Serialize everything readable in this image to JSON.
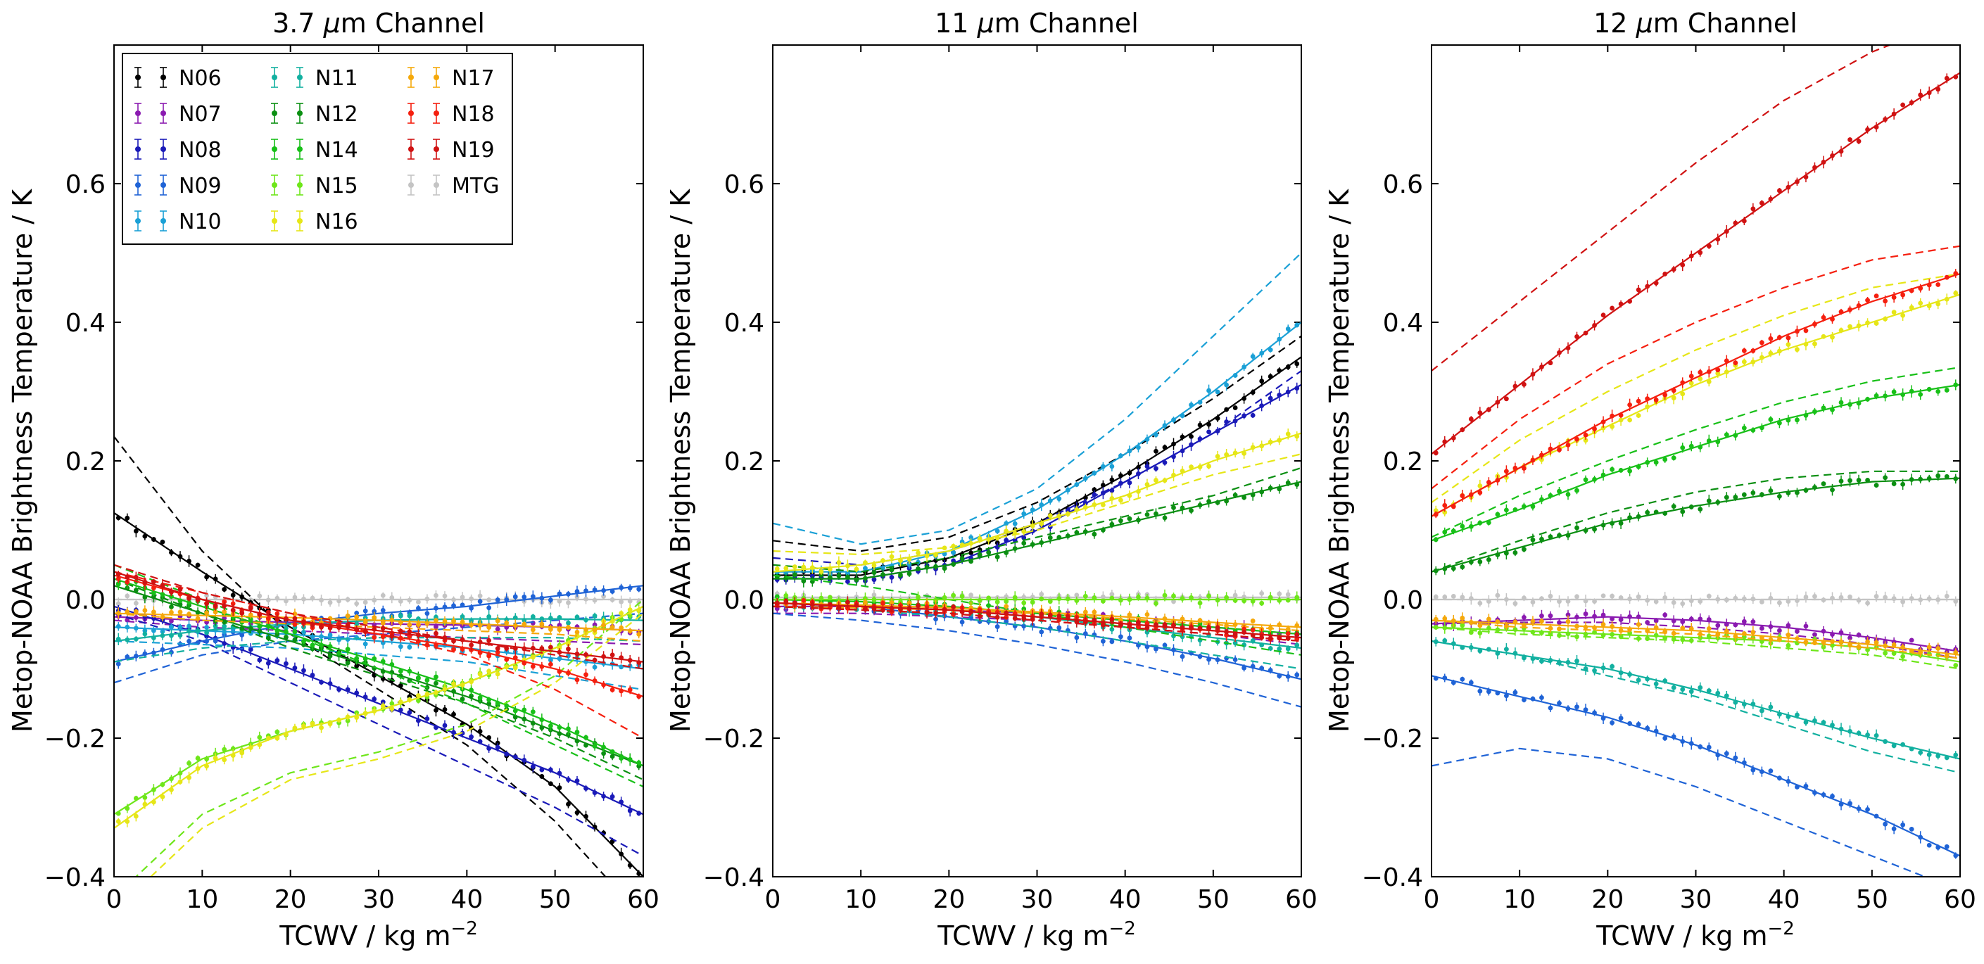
{
  "figure": {
    "xlabel_main": "TCWV / kg m",
    "xlabel_sup": "−2",
    "ylabel": "Metop-NOAA Brightness Temperature / K"
  },
  "legend": {
    "location": "top-left",
    "entries": [
      {
        "name": "N06",
        "color": "#000000"
      },
      {
        "name": "N07",
        "color": "#8a1ab0"
      },
      {
        "name": "N08",
        "color": "#1a1ab8"
      },
      {
        "name": "N09",
        "color": "#1f63d6"
      },
      {
        "name": "N10",
        "color": "#1aa0d6"
      },
      {
        "name": "N11",
        "color": "#12b0a0"
      },
      {
        "name": "N12",
        "color": "#0b8f12"
      },
      {
        "name": "N14",
        "color": "#18c018"
      },
      {
        "name": "N15",
        "color": "#6ee61a"
      },
      {
        "name": "N16",
        "color": "#e6e617"
      },
      {
        "name": "N17",
        "color": "#f5a80a"
      },
      {
        "name": "N18",
        "color": "#f51f0f"
      },
      {
        "name": "N19",
        "color": "#d01212"
      },
      {
        "name": "MTG",
        "color": "#c4c4c4"
      }
    ]
  },
  "chart_data": [
    {
      "type": "line",
      "title_prefix": "3.7 ",
      "title_mu": "μ",
      "title_suffix": "m Channel",
      "xlabel": "TCWV / kg m⁻²",
      "ylabel": "Metop-NOAA Brightness Temperature / K",
      "xlim": [
        0,
        60
      ],
      "ylim": [
        -0.4,
        0.8
      ],
      "xticks": [
        0,
        10,
        20,
        30,
        40,
        50,
        60
      ],
      "yticks": [
        -0.4,
        -0.2,
        0.0,
        0.2,
        0.4,
        0.6
      ],
      "series": [
        {
          "name": "MTG",
          "solid": [
            0,
            0,
            0,
            0,
            0,
            0,
            0
          ],
          "dashed": [
            0,
            0,
            0,
            0,
            0,
            0,
            0
          ]
        },
        {
          "name": "N06",
          "solid": [
            0.125,
            0.04,
            -0.04,
            -0.11,
            -0.18,
            -0.27,
            -0.4
          ],
          "dashed": [
            0.235,
            0.07,
            -0.05,
            -0.13,
            -0.21,
            -0.32,
            -0.46
          ]
        },
        {
          "name": "N07",
          "solid": [
            -0.025,
            -0.03,
            -0.033,
            -0.035,
            -0.037,
            -0.04,
            -0.045
          ],
          "dashed": [
            -0.03,
            -0.04,
            -0.045,
            -0.05,
            -0.055,
            -0.06,
            -0.065
          ]
        },
        {
          "name": "N08",
          "solid": [
            -0.01,
            -0.05,
            -0.1,
            -0.15,
            -0.2,
            -0.25,
            -0.31
          ],
          "dashed": [
            -0.02,
            -0.06,
            -0.12,
            -0.18,
            -0.24,
            -0.3,
            -0.37
          ]
        },
        {
          "name": "N09",
          "solid": [
            -0.09,
            -0.06,
            -0.035,
            -0.02,
            -0.01,
            0.005,
            0.02
          ],
          "dashed": [
            -0.12,
            -0.08,
            -0.06,
            -0.05,
            -0.04,
            -0.03,
            -0.02
          ]
        },
        {
          "name": "N10",
          "solid": [
            -0.04,
            -0.045,
            -0.05,
            -0.06,
            -0.07,
            -0.085,
            -0.1
          ],
          "dashed": [
            -0.06,
            -0.065,
            -0.07,
            -0.08,
            -0.09,
            -0.11,
            -0.13
          ]
        },
        {
          "name": "N11",
          "solid": [
            -0.06,
            -0.045,
            -0.035,
            -0.03,
            -0.028,
            -0.028,
            -0.03
          ],
          "dashed": [
            -0.09,
            -0.07,
            -0.06,
            -0.055,
            -0.055,
            -0.055,
            -0.06
          ]
        },
        {
          "name": "N12",
          "solid": [
            0.02,
            -0.02,
            -0.06,
            -0.1,
            -0.14,
            -0.19,
            -0.24
          ],
          "dashed": [
            0.03,
            -0.02,
            -0.07,
            -0.11,
            -0.15,
            -0.2,
            -0.26
          ]
        },
        {
          "name": "N14",
          "solid": [
            0.03,
            -0.01,
            -0.05,
            -0.09,
            -0.13,
            -0.18,
            -0.24
          ],
          "dashed": [
            0.05,
            0.0,
            -0.05,
            -0.1,
            -0.15,
            -0.21,
            -0.27
          ]
        },
        {
          "name": "N15",
          "solid": [
            -0.31,
            -0.23,
            -0.19,
            -0.16,
            -0.12,
            -0.07,
            -0.01
          ],
          "dashed": [
            -0.43,
            -0.31,
            -0.25,
            -0.22,
            -0.18,
            -0.11,
            0.0
          ]
        },
        {
          "name": "N16",
          "solid": [
            -0.33,
            -0.24,
            -0.19,
            -0.16,
            -0.12,
            -0.07,
            -0.01
          ],
          "dashed": [
            -0.45,
            -0.33,
            -0.26,
            -0.23,
            -0.19,
            -0.12,
            -0.02
          ]
        },
        {
          "name": "N17",
          "solid": [
            -0.02,
            -0.023,
            -0.026,
            -0.03,
            -0.035,
            -0.04,
            -0.045
          ],
          "dashed": [
            -0.02,
            -0.03,
            -0.035,
            -0.04,
            -0.045,
            -0.05,
            -0.06
          ]
        },
        {
          "name": "N18",
          "solid": [
            0.035,
            0.0,
            -0.03,
            -0.05,
            -0.07,
            -0.1,
            -0.14
          ],
          "dashed": [
            0.04,
            0.01,
            -0.02,
            -0.05,
            -0.08,
            -0.13,
            -0.2
          ]
        },
        {
          "name": "N19",
          "solid": [
            0.04,
            0.0,
            -0.03,
            -0.045,
            -0.06,
            -0.075,
            -0.09
          ],
          "dashed": [
            0.05,
            0.01,
            -0.02,
            -0.04,
            -0.06,
            -0.08,
            -0.1
          ]
        }
      ]
    },
    {
      "type": "line",
      "title_prefix": "11 ",
      "title_mu": "μ",
      "title_suffix": "m Channel",
      "xlabel": "TCWV / kg m⁻²",
      "ylabel": "Metop-NOAA Brightness Temperature / K",
      "xlim": [
        0,
        60
      ],
      "ylim": [
        -0.4,
        0.8
      ],
      "xticks": [
        0,
        10,
        20,
        30,
        40,
        50,
        60
      ],
      "yticks": [
        -0.4,
        -0.2,
        0.0,
        0.2,
        0.4,
        0.6
      ],
      "series": [
        {
          "name": "MTG",
          "solid": [
            0.003,
            0.003,
            0.003,
            0.003,
            0.003,
            0.003,
            0.003
          ],
          "dashed": [
            0.003,
            0.003,
            0.003,
            0.003,
            0.003,
            0.003,
            0.003
          ]
        },
        {
          "name": "N06",
          "solid": [
            0.035,
            0.035,
            0.06,
            0.11,
            0.18,
            0.26,
            0.35
          ],
          "dashed": [
            0.085,
            0.07,
            0.09,
            0.14,
            0.21,
            0.29,
            0.38
          ]
        },
        {
          "name": "N07",
          "solid": [
            -0.01,
            -0.01,
            -0.015,
            -0.02,
            -0.03,
            -0.04,
            -0.05
          ],
          "dashed": [
            -0.02,
            -0.02,
            -0.025,
            -0.03,
            -0.04,
            -0.05,
            -0.065
          ]
        },
        {
          "name": "N08",
          "solid": [
            0.03,
            0.03,
            0.05,
            0.1,
            0.17,
            0.24,
            0.31
          ],
          "dashed": [
            0.06,
            0.05,
            0.07,
            0.11,
            0.17,
            0.24,
            0.33
          ]
        },
        {
          "name": "N09",
          "solid": [
            -0.005,
            -0.01,
            -0.025,
            -0.04,
            -0.06,
            -0.085,
            -0.115
          ],
          "dashed": [
            -0.02,
            -0.03,
            -0.045,
            -0.065,
            -0.09,
            -0.12,
            -0.155
          ]
        },
        {
          "name": "N10",
          "solid": [
            0.04,
            0.04,
            0.07,
            0.13,
            0.21,
            0.3,
            0.4
          ],
          "dashed": [
            0.11,
            0.08,
            0.1,
            0.16,
            0.26,
            0.38,
            0.5
          ]
        },
        {
          "name": "N11",
          "solid": [
            -0.005,
            -0.01,
            -0.015,
            -0.025,
            -0.04,
            -0.055,
            -0.07
          ],
          "dashed": [
            -0.01,
            -0.015,
            -0.025,
            -0.04,
            -0.06,
            -0.08,
            -0.1
          ]
        },
        {
          "name": "N12",
          "solid": [
            0.03,
            0.03,
            0.05,
            0.08,
            0.11,
            0.14,
            0.17
          ],
          "dashed": [
            0.05,
            0.04,
            0.06,
            0.09,
            0.12,
            0.15,
            0.19
          ]
        },
        {
          "name": "N14",
          "solid": [
            0.0,
            -0.003,
            -0.01,
            -0.02,
            -0.03,
            -0.04,
            -0.05
          ],
          "dashed": [
            0.035,
            0.02,
            0.0,
            -0.02,
            -0.04,
            -0.06,
            -0.08
          ]
        },
        {
          "name": "N15",
          "solid": [
            0.0,
            0.0,
            0.0,
            0.0,
            0.0,
            0.0,
            0.0
          ],
          "dashed": [
            0.0,
            0.0,
            0.0,
            0.0,
            0.0,
            0.0,
            0.0
          ]
        },
        {
          "name": "N16",
          "solid": [
            0.04,
            0.05,
            0.07,
            0.11,
            0.15,
            0.2,
            0.24
          ],
          "dashed": [
            0.07,
            0.065,
            0.075,
            0.1,
            0.14,
            0.18,
            0.21
          ]
        },
        {
          "name": "N17",
          "solid": [
            -0.005,
            -0.008,
            -0.012,
            -0.018,
            -0.025,
            -0.033,
            -0.04
          ],
          "dashed": [
            -0.01,
            -0.012,
            -0.015,
            -0.02,
            -0.028,
            -0.036,
            -0.045
          ]
        },
        {
          "name": "N18",
          "solid": [
            -0.005,
            -0.01,
            -0.015,
            -0.025,
            -0.035,
            -0.045,
            -0.055
          ],
          "dashed": [
            -0.01,
            -0.015,
            -0.02,
            -0.03,
            -0.04,
            -0.05,
            -0.06
          ]
        },
        {
          "name": "N19",
          "solid": [
            -0.005,
            -0.01,
            -0.015,
            -0.025,
            -0.035,
            -0.045,
            -0.055
          ],
          "dashed": [
            -0.01,
            -0.015,
            -0.02,
            -0.03,
            -0.04,
            -0.05,
            -0.06
          ]
        }
      ]
    },
    {
      "type": "line",
      "title_prefix": "12 ",
      "title_mu": "μ",
      "title_suffix": "m Channel",
      "xlabel": "TCWV / kg m⁻²",
      "ylabel": "Metop-NOAA Brightness Temperature / K",
      "xlim": [
        0,
        60
      ],
      "ylim": [
        -0.4,
        0.8
      ],
      "xticks": [
        0,
        10,
        20,
        30,
        40,
        50,
        60
      ],
      "yticks": [
        -0.4,
        -0.2,
        0.0,
        0.2,
        0.4,
        0.6
      ],
      "series": [
        {
          "name": "MTG",
          "solid": [
            0,
            0,
            0,
            0,
            0,
            0,
            0
          ],
          "dashed": [
            0,
            0,
            0,
            0,
            0,
            0,
            0
          ]
        },
        {
          "name": "N07",
          "solid": [
            -0.035,
            -0.03,
            -0.025,
            -0.03,
            -0.04,
            -0.055,
            -0.075
          ],
          "dashed": [
            -0.035,
            -0.033,
            -0.033,
            -0.04,
            -0.05,
            -0.065,
            -0.085
          ]
        },
        {
          "name": "N09",
          "solid": [
            -0.11,
            -0.14,
            -0.17,
            -0.21,
            -0.26,
            -0.31,
            -0.37
          ],
          "dashed": [
            -0.24,
            -0.215,
            -0.23,
            -0.27,
            -0.32,
            -0.37,
            -0.42
          ]
        },
        {
          "name": "N11",
          "solid": [
            -0.06,
            -0.08,
            -0.1,
            -0.13,
            -0.165,
            -0.2,
            -0.23
          ],
          "dashed": [
            -0.06,
            -0.08,
            -0.11,
            -0.14,
            -0.18,
            -0.22,
            -0.25
          ]
        },
        {
          "name": "N12",
          "solid": [
            0.04,
            0.075,
            0.11,
            0.135,
            0.155,
            0.17,
            0.175
          ],
          "dashed": [
            0.04,
            0.085,
            0.125,
            0.155,
            0.175,
            0.185,
            0.185
          ]
        },
        {
          "name": "N14",
          "solid": [
            0.085,
            0.13,
            0.18,
            0.22,
            0.26,
            0.29,
            0.31
          ],
          "dashed": [
            0.09,
            0.15,
            0.2,
            0.245,
            0.285,
            0.315,
            0.335
          ]
        },
        {
          "name": "N15",
          "solid": [
            -0.04,
            -0.045,
            -0.05,
            -0.055,
            -0.06,
            -0.07,
            -0.09
          ],
          "dashed": [
            -0.04,
            -0.05,
            -0.055,
            -0.06,
            -0.07,
            -0.08,
            -0.1
          ]
        },
        {
          "name": "N16",
          "solid": [
            0.12,
            0.19,
            0.25,
            0.31,
            0.36,
            0.4,
            0.44
          ],
          "dashed": [
            0.14,
            0.23,
            0.3,
            0.36,
            0.41,
            0.45,
            0.47
          ]
        },
        {
          "name": "N17",
          "solid": [
            -0.03,
            -0.035,
            -0.04,
            -0.045,
            -0.055,
            -0.065,
            -0.08
          ],
          "dashed": [
            -0.03,
            -0.04,
            -0.045,
            -0.05,
            -0.06,
            -0.07,
            -0.085
          ]
        },
        {
          "name": "N18",
          "solid": [
            0.12,
            0.19,
            0.26,
            0.32,
            0.38,
            0.43,
            0.47
          ],
          "dashed": [
            0.16,
            0.26,
            0.34,
            0.4,
            0.45,
            0.49,
            0.51
          ]
        },
        {
          "name": "N19",
          "solid": [
            0.21,
            0.31,
            0.41,
            0.5,
            0.59,
            0.68,
            0.76
          ],
          "dashed": [
            0.33,
            0.43,
            0.53,
            0.63,
            0.72,
            0.79,
            0.84
          ]
        }
      ]
    }
  ]
}
